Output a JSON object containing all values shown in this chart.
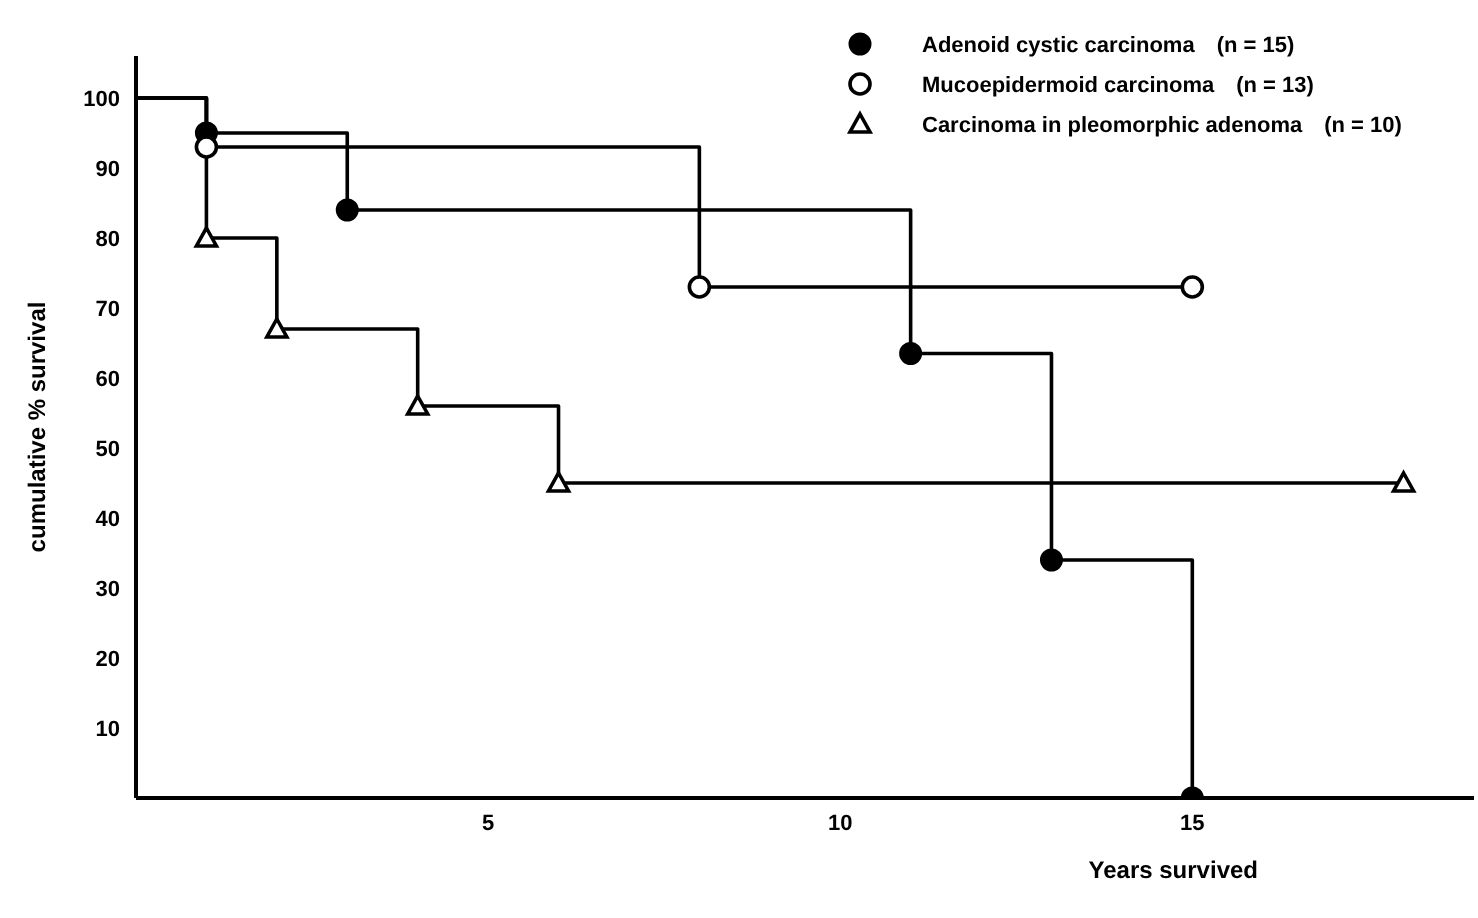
{
  "chart_data": {
    "type": "step",
    "ylabel": "cumulative % survival",
    "xlabel": "Years survived",
    "xlim": [
      0,
      19
    ],
    "xticks": [
      5,
      10,
      15
    ],
    "ylim": [
      0,
      106
    ],
    "yticks": [
      10,
      20,
      30,
      40,
      50,
      60,
      70,
      80,
      90,
      100
    ],
    "legend": "top right",
    "series": [
      {
        "name": "Adenoid cystic carcinoma　(n = 15)",
        "color": "#000000",
        "marker": "circle",
        "x": [
          0,
          1,
          3,
          11,
          13,
          15
        ],
        "values": [
          100,
          95,
          84,
          63.5,
          34,
          0
        ]
      },
      {
        "name": "Mucoepidermoid carcinoma　(n = 13)",
        "color": "#000000",
        "marker": "circle-open",
        "x": [
          0,
          1,
          8,
          15
        ],
        "values": [
          100,
          93,
          73,
          73
        ]
      },
      {
        "name": "Carcinoma in pleomorphic adenoma　(n = 10)",
        "color": "#000000",
        "marker": "triangle",
        "x": [
          0,
          1,
          2,
          4,
          6,
          18
        ],
        "values": [
          100,
          80,
          67,
          56,
          45,
          45
        ]
      }
    ]
  }
}
